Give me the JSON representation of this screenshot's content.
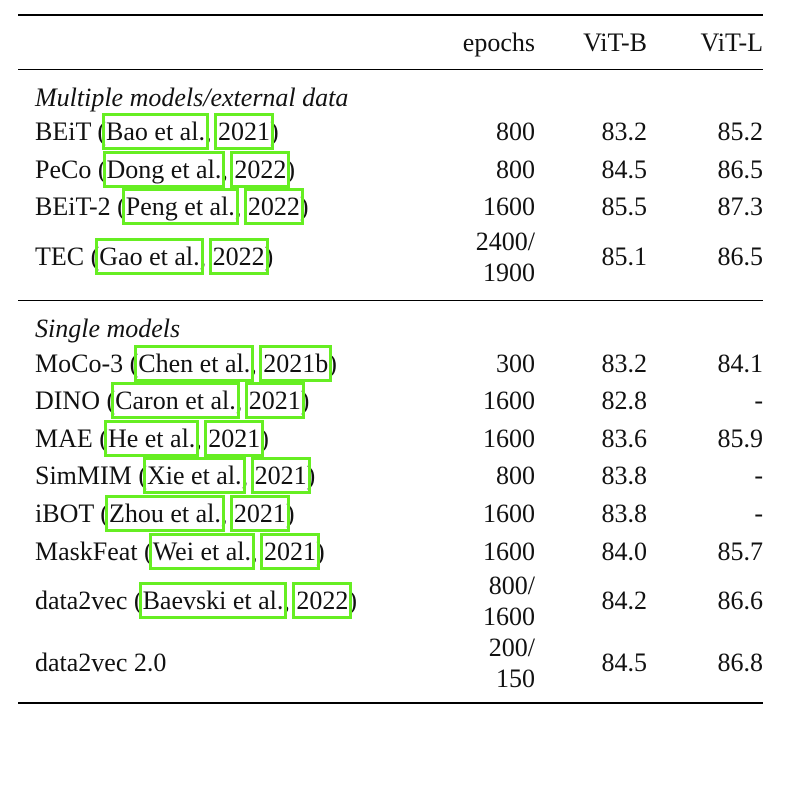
{
  "header": {
    "columns": [
      "epochs",
      "ViT-B",
      "ViT-L"
    ]
  },
  "punctuation": {
    "open": "(",
    "sep": ",",
    "close": ")"
  },
  "sections": [
    {
      "title": "Multiple models/external data",
      "rows": [
        {
          "method": "BEiT",
          "authors": "Bao et al.",
          "year": "2021",
          "epochs": [
            "800"
          ],
          "vit_b": "83.2",
          "vit_l": "85.2"
        },
        {
          "method": "PeCo",
          "authors": "Dong et al.",
          "year": "2022",
          "epochs": [
            "800"
          ],
          "vit_b": "84.5",
          "vit_l": "86.5"
        },
        {
          "method": "BEiT-2",
          "authors": "Peng et al.",
          "year": "2022",
          "epochs": [
            "1600"
          ],
          "vit_b": "85.5",
          "vit_l": "87.3"
        },
        {
          "method": "TEC",
          "authors": "Gao et al.",
          "year": "2022",
          "epochs": [
            "2400/",
            "1900"
          ],
          "vit_b": "85.1",
          "vit_l": "86.5"
        }
      ]
    },
    {
      "title": "Single models",
      "rows": [
        {
          "method": "MoCo-3",
          "authors": "Chen et al.",
          "year": "2021b",
          "epochs": [
            "300"
          ],
          "vit_b": "83.2",
          "vit_l": "84.1"
        },
        {
          "method": "DINO",
          "authors": "Caron et al.",
          "year": "2021",
          "epochs": [
            "1600"
          ],
          "vit_b": "82.8",
          "vit_l": "-"
        },
        {
          "method": "MAE",
          "authors": "He et al.",
          "year": "2021",
          "epochs": [
            "1600"
          ],
          "vit_b": "83.6",
          "vit_l": "85.9"
        },
        {
          "method": "SimMIM",
          "authors": "Xie et al.",
          "year": "2021",
          "epochs": [
            "800"
          ],
          "vit_b": "83.8",
          "vit_l": "-"
        },
        {
          "method": "iBOT",
          "authors": "Zhou et al.",
          "year": "2021",
          "epochs": [
            "1600"
          ],
          "vit_b": "83.8",
          "vit_l": "-"
        },
        {
          "method": "MaskFeat",
          "authors": "Wei et al.",
          "year": "2021",
          "epochs": [
            "1600"
          ],
          "vit_b": "84.0",
          "vit_l": "85.7"
        },
        {
          "method": "data2vec",
          "authors": "Baevski et al.",
          "year": "2022",
          "epochs": [
            "800/",
            "1600"
          ],
          "vit_b": "84.2",
          "vit_l": "86.6"
        },
        {
          "method": "data2vec 2.0",
          "epochs": [
            "200/",
            "150"
          ],
          "vit_b": "84.5",
          "vit_l": "86.8"
        }
      ]
    }
  ]
}
